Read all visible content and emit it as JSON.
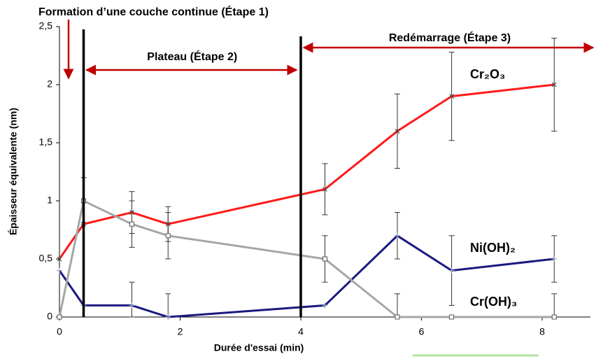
{
  "chart_data": {
    "type": "line",
    "title": "Formation d’une couche continue (Étape 1)",
    "xlabel": "Durée d'essai (min)",
    "ylabel": "Épaisseur équivalente (nm)",
    "x": [
      0,
      0.4,
      1.2,
      1.8,
      4.4,
      5.6,
      6.5,
      8.2
    ],
    "series": [
      {
        "name": "Cr₂O₃",
        "color": "#ff1a1a",
        "marker": "x",
        "values": [
          0.5,
          0.8,
          0.9,
          0.8,
          1.1,
          1.6,
          1.9,
          2.0
        ],
        "errors": [
          null,
          null,
          0.18,
          0.15,
          0.22,
          0.32,
          0.38,
          0.4
        ]
      },
      {
        "name": "Ni(OH)₂",
        "color": "#1a1a80",
        "marker": "+",
        "values": [
          0.4,
          0.1,
          0.1,
          0,
          0.1,
          0.7,
          0.4,
          0.5
        ],
        "errors": [
          null,
          null,
          0.2,
          0.2,
          null,
          0.2,
          0.3,
          0.2
        ]
      },
      {
        "name": "Cr(OH)₃",
        "color": "#a6a6a6",
        "marker": "square",
        "values": [
          0,
          1.0,
          0.8,
          0.7,
          0.5,
          0,
          0,
          0
        ],
        "errors": [
          null,
          0.2,
          0.2,
          0.2,
          0.2,
          0.2,
          null,
          0.2
        ]
      }
    ],
    "vlines": [
      0.4,
      4.0
    ],
    "annotations": [
      "Plateau (Étape 2)",
      "Redémarrage (Étape 3)"
    ],
    "xlim": [
      0,
      8.8
    ],
    "xticks": [
      0,
      2,
      4,
      6,
      8
    ],
    "ylim": [
      0,
      2.5
    ],
    "yticks": [
      0,
      {
        "value": 0.5,
        "label": "0,5"
      },
      1,
      {
        "value": 1.5,
        "label": "1,5"
      },
      2,
      {
        "value": 2.5,
        "label": "2,5"
      }
    ],
    "grid": false
  }
}
